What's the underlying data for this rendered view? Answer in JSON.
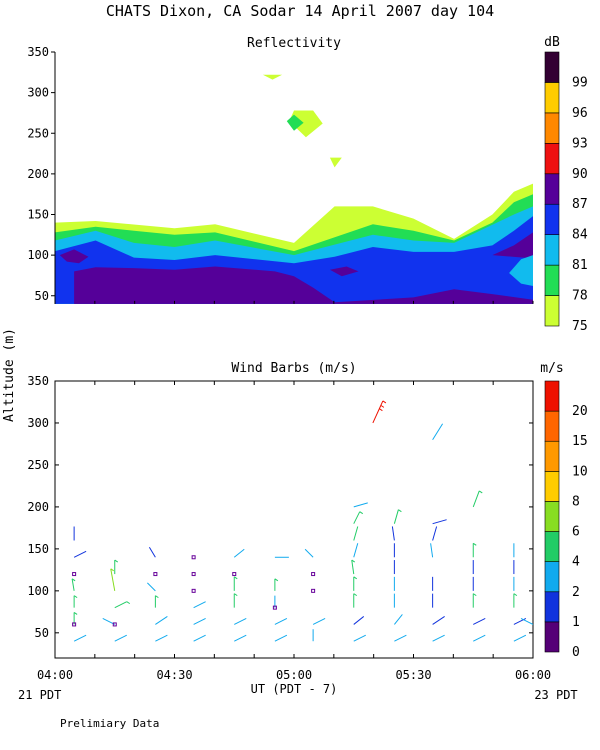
{
  "page": {
    "title": "CHATS Dixon, CA  Sodar  14 April 2007  day 104",
    "footer_note": "Prelimiary Data",
    "shared_ylabel": "Altitude (m)",
    "xlabel": "UT  (PDT - 7)",
    "left_date_label": "21 PDT",
    "right_date_label": "23 PDT"
  },
  "chart_data": [
    {
      "type": "heatmap",
      "title": "Reflectivity",
      "xlabel": "UT  (PDT - 7)",
      "ylabel": "Altitude (m)",
      "x_ticks": [
        "04:00",
        "04:30",
        "05:00",
        "05:30",
        "06:00"
      ],
      "x_tick_hours": [
        4.0,
        4.5,
        5.0,
        5.5,
        6.0
      ],
      "xlim": [
        4.0,
        6.0
      ],
      "y_ticks": [
        50,
        100,
        150,
        200,
        250,
        300,
        350
      ],
      "ylim": [
        30,
        350
      ],
      "colorbar": {
        "unit": "dB",
        "labels": [
          "75",
          "78",
          "81",
          "84",
          "87",
          "90",
          "93",
          "96",
          "99"
        ],
        "colors": [
          "#ccff33",
          "#22dd55",
          "#11bbee",
          "#1133ee",
          "#550099",
          "#ee1111",
          "#ff8800",
          "#ffcc00",
          "#330033"
        ]
      },
      "layers": [
        {
          "level": "75",
          "color": "#ccff33",
          "top": [
            [
              4.0,
              140
            ],
            [
              4.17,
              142
            ],
            [
              4.5,
              133
            ],
            [
              4.67,
              138
            ],
            [
              5.0,
              115
            ],
            [
              5.17,
              160
            ],
            [
              5.33,
              160
            ],
            [
              5.5,
              145
            ],
            [
              5.67,
              120
            ],
            [
              5.83,
              150
            ],
            [
              5.92,
              178
            ],
            [
              6.0,
              188
            ]
          ]
        },
        {
          "level": "78",
          "color": "#22dd55",
          "top": [
            [
              4.0,
              128
            ],
            [
              4.17,
              135
            ],
            [
              4.33,
              130
            ],
            [
              4.5,
              125
            ],
            [
              4.67,
              128
            ],
            [
              5.0,
              105
            ],
            [
              5.33,
              138
            ],
            [
              5.5,
              130
            ],
            [
              5.67,
              118
            ],
            [
              5.83,
              140
            ],
            [
              5.92,
              165
            ],
            [
              6.0,
              175
            ]
          ]
        },
        {
          "level": "81",
          "color": "#11bbee",
          "top": [
            [
              4.0,
              118
            ],
            [
              4.17,
              130
            ],
            [
              4.33,
              115
            ],
            [
              4.5,
              110
            ],
            [
              4.67,
              118
            ],
            [
              5.0,
              100
            ],
            [
              5.33,
              125
            ],
            [
              5.5,
              118
            ],
            [
              5.67,
              115
            ],
            [
              5.92,
              150
            ],
            [
              6.0,
              160
            ]
          ]
        },
        {
          "level": "84",
          "color": "#1133ee",
          "top": [
            [
              4.0,
              105
            ],
            [
              4.17,
              118
            ],
            [
              4.33,
              97
            ],
            [
              4.5,
              94
            ],
            [
              4.67,
              100
            ],
            [
              5.0,
              90
            ],
            [
              5.17,
              98
            ],
            [
              5.33,
              110
            ],
            [
              5.5,
              104
            ],
            [
              5.67,
              104
            ],
            [
              5.83,
              112
            ],
            [
              5.92,
              130
            ],
            [
              6.0,
              148
            ]
          ]
        },
        {
          "level": "87",
          "color": "#550099",
          "top": [
            [
              4.08,
              80
            ],
            [
              4.17,
              85
            ],
            [
              4.33,
              84
            ],
            [
              4.5,
              82
            ],
            [
              4.67,
              86
            ],
            [
              4.92,
              80
            ],
            [
              5.0,
              74
            ],
            [
              5.08,
              60
            ],
            [
              5.17,
              42
            ],
            [
              5.5,
              48
            ],
            [
              5.67,
              58
            ],
            [
              5.83,
              52
            ],
            [
              6.0,
              45
            ]
          ]
        }
      ],
      "patches": [
        {
          "level": "75",
          "color": "#ccff33",
          "points": [
            [
              5.0,
              278
            ],
            [
              5.08,
              278
            ],
            [
              5.12,
              262
            ],
            [
              5.05,
              245
            ],
            [
              4.98,
              265
            ]
          ]
        },
        {
          "level": "78",
          "color": "#22dd55",
          "points": [
            [
              5.0,
              273
            ],
            [
              5.04,
              263
            ],
            [
              5.0,
              253
            ],
            [
              4.97,
              265
            ]
          ]
        },
        {
          "level": "75",
          "color": "#ccff33",
          "points": [
            [
              5.15,
              220
            ],
            [
              5.2,
              220
            ],
            [
              5.17,
              208
            ]
          ]
        },
        {
          "level": "75",
          "color": "#ccff33",
          "points": [
            [
              4.87,
              322
            ],
            [
              4.95,
              322
            ],
            [
              4.91,
              316
            ]
          ]
        },
        {
          "level": "87",
          "color": "#550099",
          "points": [
            [
              4.02,
              100
            ],
            [
              4.08,
              107
            ],
            [
              4.14,
              98
            ],
            [
              4.1,
              90
            ],
            [
              4.05,
              92
            ]
          ]
        },
        {
          "level": "87",
          "color": "#550099",
          "points": [
            [
              5.15,
              82
            ],
            [
              5.22,
              86
            ],
            [
              5.27,
              80
            ],
            [
              5.2,
              74
            ]
          ]
        },
        {
          "level": "87",
          "color": "#550099",
          "points": [
            [
              5.83,
              100
            ],
            [
              5.92,
              112
            ],
            [
              6.0,
              128
            ],
            [
              6.0,
              96
            ]
          ]
        },
        {
          "level": "81",
          "color": "#11bbee",
          "points": [
            [
              5.9,
              78
            ],
            [
              5.95,
              95
            ],
            [
              6.0,
              100
            ],
            [
              6.0,
              62
            ],
            [
              5.95,
              65
            ]
          ]
        }
      ]
    },
    {
      "type": "scatter",
      "title": "Wind Barbs (m/s)",
      "xlabel": "UT  (PDT - 7)",
      "ylabel": "Altitude (m)",
      "x_ticks": [
        "04:00",
        "04:30",
        "05:00",
        "05:30",
        "06:00"
      ],
      "x_tick_hours": [
        4.0,
        4.5,
        5.0,
        5.5,
        6.0
      ],
      "xlim": [
        4.0,
        6.0
      ],
      "y_ticks": [
        50,
        100,
        150,
        200,
        250,
        300,
        350
      ],
      "ylim": [
        20,
        350
      ],
      "colorbar": {
        "unit": "m/s",
        "labels": [
          "0",
          "1",
          "2",
          "4",
          "6",
          "8",
          "10",
          "15",
          "20"
        ],
        "colors": [
          "#550077",
          "#1133dd",
          "#11aaee",
          "#22cc66",
          "#88dd22",
          "#ffcc00",
          "#ff9900",
          "#ff6600",
          "#ee1100"
        ]
      },
      "barb_rows": [
        40,
        60,
        80,
        100,
        120,
        140,
        160,
        180,
        200
      ],
      "calm_color": "#660099",
      "barbs": [
        {
          "x": 4.08,
          "y": 40,
          "speed": 2.2,
          "dx": 12,
          "dy": -6
        },
        {
          "x": 4.08,
          "y": 60,
          "speed": 5.2,
          "dx": 0,
          "dy": -12
        },
        {
          "x": 4.08,
          "y": 80,
          "speed": 5.2,
          "dx": 0,
          "dy": -12
        },
        {
          "x": 4.08,
          "y": 100,
          "speed": 5.2,
          "dx": -2,
          "dy": -12
        },
        {
          "x": 4.08,
          "y": 140,
          "speed": 1.4,
          "dx": 12,
          "dy": -6
        },
        {
          "x": 4.08,
          "y": 160,
          "speed": 1.4,
          "dx": 0,
          "dy": -14
        },
        {
          "x": 4.25,
          "y": 40,
          "speed": 2.2,
          "dx": 12,
          "dy": -6
        },
        {
          "x": 4.25,
          "y": 60,
          "speed": 3.0,
          "dx": -12,
          "dy": -6
        },
        {
          "x": 4.25,
          "y": 80,
          "speed": 5.2,
          "dx": 12,
          "dy": -6
        },
        {
          "x": 4.25,
          "y": 100,
          "speed": 7.0,
          "dx": -4,
          "dy": -22
        },
        {
          "x": 4.25,
          "y": 120,
          "speed": 5.2,
          "dx": 0,
          "dy": -14
        },
        {
          "x": 4.42,
          "y": 40,
          "speed": 2.2,
          "dx": 12,
          "dy": -6
        },
        {
          "x": 4.42,
          "y": 60,
          "speed": 3.0,
          "dx": 12,
          "dy": -8
        },
        {
          "x": 4.42,
          "y": 80,
          "speed": 5.2,
          "dx": 0,
          "dy": -12
        },
        {
          "x": 4.42,
          "y": 100,
          "speed": 2.2,
          "dx": -8,
          "dy": -8
        },
        {
          "x": 4.42,
          "y": 140,
          "speed": 1.4,
          "dx": -6,
          "dy": -10
        },
        {
          "x": 4.58,
          "y": 40,
          "speed": 2.2,
          "dx": 12,
          "dy": -6
        },
        {
          "x": 4.58,
          "y": 60,
          "speed": 2.2,
          "dx": 12,
          "dy": -6
        },
        {
          "x": 4.58,
          "y": 80,
          "speed": 3.0,
          "dx": 12,
          "dy": -6
        },
        {
          "x": 4.75,
          "y": 40,
          "speed": 2.2,
          "dx": 12,
          "dy": -6
        },
        {
          "x": 4.75,
          "y": 60,
          "speed": 2.2,
          "dx": 12,
          "dy": -6
        },
        {
          "x": 4.75,
          "y": 80,
          "speed": 5.2,
          "dx": 0,
          "dy": -14
        },
        {
          "x": 4.75,
          "y": 100,
          "speed": 5.2,
          "dx": 0,
          "dy": -14
        },
        {
          "x": 4.75,
          "y": 140,
          "speed": 2.2,
          "dx": 10,
          "dy": -8
        },
        {
          "x": 4.92,
          "y": 40,
          "speed": 2.2,
          "dx": 12,
          "dy": -6
        },
        {
          "x": 4.92,
          "y": 60,
          "speed": 2.2,
          "dx": 12,
          "dy": -6
        },
        {
          "x": 4.92,
          "y": 80,
          "speed": 3.0,
          "dx": 0,
          "dy": -12
        },
        {
          "x": 4.92,
          "y": 100,
          "speed": 5.2,
          "dx": 0,
          "dy": -12
        },
        {
          "x": 4.92,
          "y": 140,
          "speed": 2.2,
          "dx": 14,
          "dy": 0
        },
        {
          "x": 5.08,
          "y": 40,
          "speed": 3.0,
          "dx": 0,
          "dy": -12
        },
        {
          "x": 5.08,
          "y": 60,
          "speed": 2.2,
          "dx": 12,
          "dy": -6
        },
        {
          "x": 5.08,
          "y": 140,
          "speed": 2.2,
          "dx": -8,
          "dy": -8
        },
        {
          "x": 5.25,
          "y": 40,
          "speed": 2.2,
          "dx": 12,
          "dy": -6
        },
        {
          "x": 5.25,
          "y": 60,
          "speed": 1.4,
          "dx": 10,
          "dy": -8
        },
        {
          "x": 5.25,
          "y": 80,
          "speed": 5.2,
          "dx": 0,
          "dy": -14
        },
        {
          "x": 5.25,
          "y": 100,
          "speed": 5.2,
          "dx": 0,
          "dy": -14
        },
        {
          "x": 5.25,
          "y": 120,
          "speed": 5.2,
          "dx": -2,
          "dy": -14
        },
        {
          "x": 5.25,
          "y": 140,
          "speed": 3.0,
          "dx": 4,
          "dy": -14
        },
        {
          "x": 5.25,
          "y": 160,
          "speed": 4.2,
          "dx": 4,
          "dy": -14
        },
        {
          "x": 5.25,
          "y": 180,
          "speed": 5.2,
          "dx": 6,
          "dy": -12
        },
        {
          "x": 5.25,
          "y": 200,
          "speed": 3.0,
          "dx": 14,
          "dy": -4
        },
        {
          "x": 5.33,
          "y": 300,
          "speed": 20.0,
          "dx": 10,
          "dy": -22
        },
        {
          "x": 5.42,
          "y": 40,
          "speed": 2.2,
          "dx": 12,
          "dy": -6
        },
        {
          "x": 5.42,
          "y": 60,
          "speed": 3.0,
          "dx": 8,
          "dy": -10
        },
        {
          "x": 5.42,
          "y": 80,
          "speed": 3.0,
          "dx": 0,
          "dy": -14
        },
        {
          "x": 5.42,
          "y": 100,
          "speed": 3.0,
          "dx": 0,
          "dy": -14
        },
        {
          "x": 5.42,
          "y": 120,
          "speed": 1.4,
          "dx": 0,
          "dy": -14
        },
        {
          "x": 5.42,
          "y": 140,
          "speed": 1.4,
          "dx": 0,
          "dy": -14
        },
        {
          "x": 5.42,
          "y": 160,
          "speed": 1.4,
          "dx": -2,
          "dy": -14
        },
        {
          "x": 5.42,
          "y": 180,
          "speed": 5.2,
          "dx": 4,
          "dy": -14
        },
        {
          "x": 5.58,
          "y": 40,
          "speed": 2.2,
          "dx": 12,
          "dy": -6
        },
        {
          "x": 5.58,
          "y": 60,
          "speed": 1.4,
          "dx": 12,
          "dy": -8
        },
        {
          "x": 5.58,
          "y": 80,
          "speed": 1.4,
          "dx": 0,
          "dy": -14
        },
        {
          "x": 5.58,
          "y": 100,
          "speed": 1.4,
          "dx": 0,
          "dy": -14
        },
        {
          "x": 5.58,
          "y": 140,
          "speed": 2.2,
          "dx": -2,
          "dy": -14
        },
        {
          "x": 5.58,
          "y": 160,
          "speed": 1.4,
          "dx": 4,
          "dy": -14
        },
        {
          "x": 5.58,
          "y": 180,
          "speed": 1.4,
          "dx": 14,
          "dy": -4
        },
        {
          "x": 5.58,
          "y": 280,
          "speed": 2.2,
          "dx": 10,
          "dy": -16
        },
        {
          "x": 5.75,
          "y": 40,
          "speed": 2.2,
          "dx": 12,
          "dy": -6
        },
        {
          "x": 5.75,
          "y": 60,
          "speed": 1.4,
          "dx": 12,
          "dy": -6
        },
        {
          "x": 5.75,
          "y": 80,
          "speed": 5.2,
          "dx": 0,
          "dy": -14
        },
        {
          "x": 5.75,
          "y": 100,
          "speed": 1.4,
          "dx": 0,
          "dy": -14
        },
        {
          "x": 5.75,
          "y": 120,
          "speed": 1.4,
          "dx": 0,
          "dy": -14
        },
        {
          "x": 5.75,
          "y": 140,
          "speed": 5.2,
          "dx": 0,
          "dy": -14
        },
        {
          "x": 5.75,
          "y": 200,
          "speed": 5.2,
          "dx": 6,
          "dy": -16
        },
        {
          "x": 5.92,
          "y": 40,
          "speed": 2.2,
          "dx": 12,
          "dy": -6
        },
        {
          "x": 5.92,
          "y": 60,
          "speed": 1.4,
          "dx": 12,
          "dy": -6
        },
        {
          "x": 5.92,
          "y": 80,
          "speed": 5.2,
          "dx": 0,
          "dy": -14
        },
        {
          "x": 5.92,
          "y": 100,
          "speed": 2.2,
          "dx": 0,
          "dy": -14
        },
        {
          "x": 5.92,
          "y": 120,
          "speed": 1.4,
          "dx": 0,
          "dy": -14
        },
        {
          "x": 5.92,
          "y": 140,
          "speed": 2.2,
          "dx": 0,
          "dy": -14
        },
        {
          "x": 6.0,
          "y": 60,
          "speed": 2.2,
          "dx": -12,
          "dy": -6
        }
      ],
      "calm": [
        {
          "x": 4.08,
          "y": 60
        },
        {
          "x": 4.08,
          "y": 120
        },
        {
          "x": 4.25,
          "y": 60
        },
        {
          "x": 4.42,
          "y": 120
        },
        {
          "x": 4.58,
          "y": 100
        },
        {
          "x": 4.58,
          "y": 120
        },
        {
          "x": 4.58,
          "y": 140
        },
        {
          "x": 4.75,
          "y": 120
        },
        {
          "x": 4.92,
          "y": 80
        },
        {
          "x": 5.08,
          "y": 100
        },
        {
          "x": 5.08,
          "y": 120
        }
      ]
    }
  ]
}
